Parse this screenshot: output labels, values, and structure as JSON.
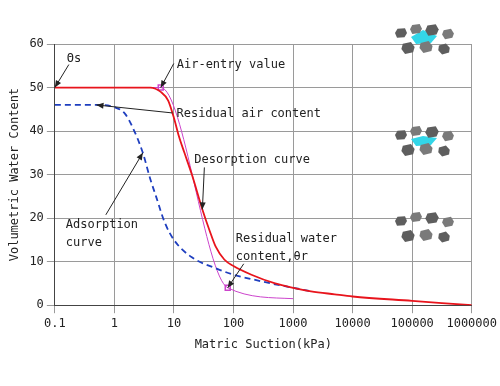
{
  "chart_data": {
    "type": "line",
    "x_label": "Matric Suction(kPa)",
    "y_label": "Volumetric Water Content",
    "log": "x",
    "grid": true,
    "xlim": [
      0.1,
      1000000
    ],
    "xticks": [
      0.1,
      1,
      10,
      100,
      1000,
      10000,
      100000,
      1000000
    ],
    "ylim": [
      0,
      60
    ],
    "yticks": [
      0,
      10,
      20,
      30,
      40,
      50,
      60
    ],
    "series": [
      {
        "type": "line",
        "color": "#e8141c",
        "line_style": "solid",
        "x": [
          0.1,
          1,
          2,
          4,
          6,
          8,
          10,
          12,
          15,
          20,
          30,
          40,
          50,
          70,
          100,
          200,
          500,
          1000,
          2000,
          5000,
          10000,
          100000,
          1000000
        ],
        "values": [
          50,
          50,
          50,
          50,
          49,
          47,
          43,
          39,
          35,
          30,
          22,
          17,
          13.5,
          10.5,
          9,
          7,
          5,
          4,
          3.2,
          2.5,
          2,
          1,
          0
        ]
      },
      {
        "type": "line",
        "color": "#1f3fbf",
        "line_style": "dashed",
        "x": [
          0.1,
          0.5,
          1,
          1.5,
          2,
          3,
          4,
          5,
          7,
          10,
          20,
          50,
          100,
          200,
          500,
          1000,
          2000
        ],
        "values": [
          46,
          46,
          45.5,
          44,
          41,
          35,
          29,
          25,
          19,
          15,
          11,
          8.5,
          7,
          6,
          4.8,
          4,
          3.2
        ]
      },
      {
        "type": "line",
        "color": "#cc44cc",
        "line_style": "solid",
        "x": [
          1.5,
          6,
          80,
          1000
        ],
        "values": [
          50,
          50,
          4,
          1.5
        ]
      },
      {
        "type": "scatter",
        "color": "#cc44cc",
        "marker": "square",
        "x": [
          6,
          80
        ],
        "values": [
          50,
          4
        ]
      }
    ],
    "annotations": [
      {
        "text": [
          "Θs"
        ],
        "x": 0.1,
        "y": 50
      },
      {
        "text": [
          "Air-entry value"
        ],
        "x": 6,
        "y": 50
      },
      {
        "text": [
          "Residual air content"
        ],
        "x": 0.5,
        "y": 46
      },
      {
        "text": [
          "Desorption curve"
        ],
        "x": 30,
        "y": 22
      },
      {
        "text": [
          "Adsorption",
          "curve"
        ],
        "x": 3,
        "y": 35
      },
      {
        "text": [
          "Residual water",
          "content,θr"
        ],
        "x": 80,
        "y": 4
      }
    ]
  }
}
